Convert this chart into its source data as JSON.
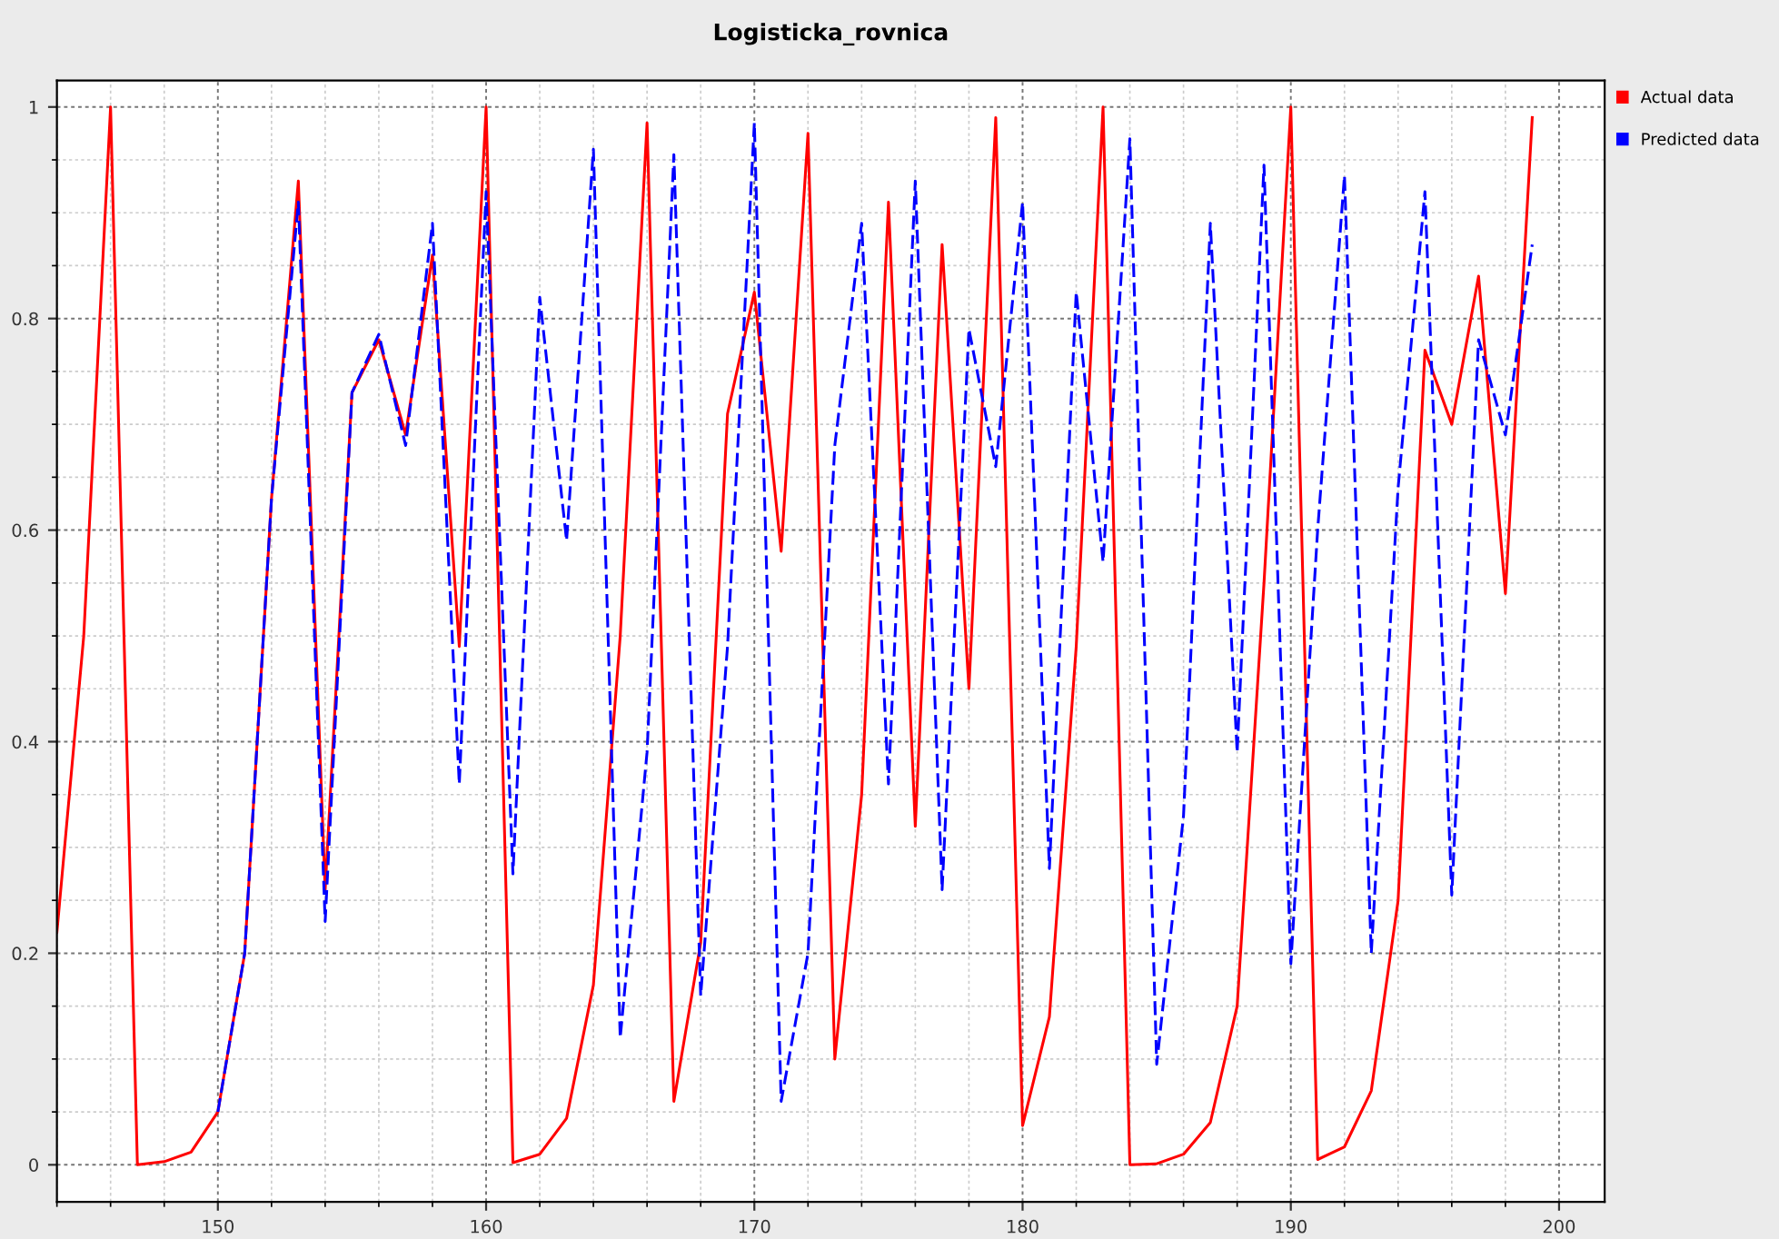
{
  "chart_data": {
    "type": "line",
    "title": "Logisticka_rovnica",
    "x": [
      144,
      145,
      146,
      147,
      148,
      149,
      150,
      151,
      152,
      153,
      154,
      155,
      156,
      157,
      158,
      159,
      160,
      161,
      162,
      163,
      164,
      165,
      166,
      167,
      168,
      169,
      170,
      171,
      172,
      173,
      174,
      175,
      176,
      177,
      178,
      179,
      180,
      181,
      182,
      183,
      184,
      185,
      186,
      187,
      188,
      189,
      190,
      191,
      192,
      193,
      194,
      195,
      196,
      197,
      198,
      199
    ],
    "series": [
      {
        "name": "Actual data",
        "color": "#ff0000",
        "line_style": "solid",
        "values": [
          0.22,
          0.5,
          1.0,
          0.0,
          0.003,
          0.012,
          0.05,
          0.2,
          0.63,
          0.93,
          0.26,
          0.73,
          0.78,
          0.69,
          0.86,
          0.49,
          1.0,
          0.002,
          0.01,
          0.044,
          0.17,
          0.5,
          0.985,
          0.06,
          0.21,
          0.71,
          0.825,
          0.58,
          0.975,
          0.1,
          0.35,
          0.91,
          0.32,
          0.87,
          0.45,
          0.99,
          0.037,
          0.14,
          0.49,
          1.0,
          0.0,
          0.001,
          0.01,
          0.04,
          0.15,
          0.55,
          1.0,
          0.005,
          0.017,
          0.07,
          0.25,
          0.77,
          0.7,
          0.84,
          0.54,
          0.99
        ]
      },
      {
        "name": "Predicted data",
        "color": "#0000ff",
        "line_style": "dashed",
        "values": [
          null,
          null,
          null,
          null,
          null,
          null,
          0.05,
          0.2,
          0.63,
          0.91,
          0.23,
          0.73,
          0.785,
          0.68,
          0.89,
          0.36,
          0.92,
          0.275,
          0.82,
          0.59,
          0.96,
          0.12,
          0.39,
          0.955,
          0.16,
          0.49,
          0.985,
          0.06,
          0.2,
          0.68,
          0.89,
          0.36,
          0.93,
          0.26,
          0.79,
          0.66,
          0.91,
          0.28,
          0.825,
          0.57,
          0.97,
          0.095,
          0.33,
          0.89,
          0.39,
          0.945,
          0.19,
          0.6,
          0.935,
          0.2,
          0.64,
          0.92,
          0.255,
          0.78,
          0.69,
          0.87
        ]
      }
    ],
    "xlim": [
      144,
      201.7
    ],
    "xticks": [
      150,
      160,
      170,
      180,
      190,
      200
    ],
    "ylim": [
      -0.035,
      1.025
    ],
    "yticks": [
      0,
      {
        "value": 0.2,
        "label": "0.2"
      },
      {
        "value": 0.4,
        "label": "0.4"
      },
      {
        "value": 0.6,
        "label": "0.6"
      },
      {
        "value": 0.8,
        "label": "0.8"
      },
      1
    ],
    "grid": true,
    "legend": "top right",
    "marker": "none"
  }
}
